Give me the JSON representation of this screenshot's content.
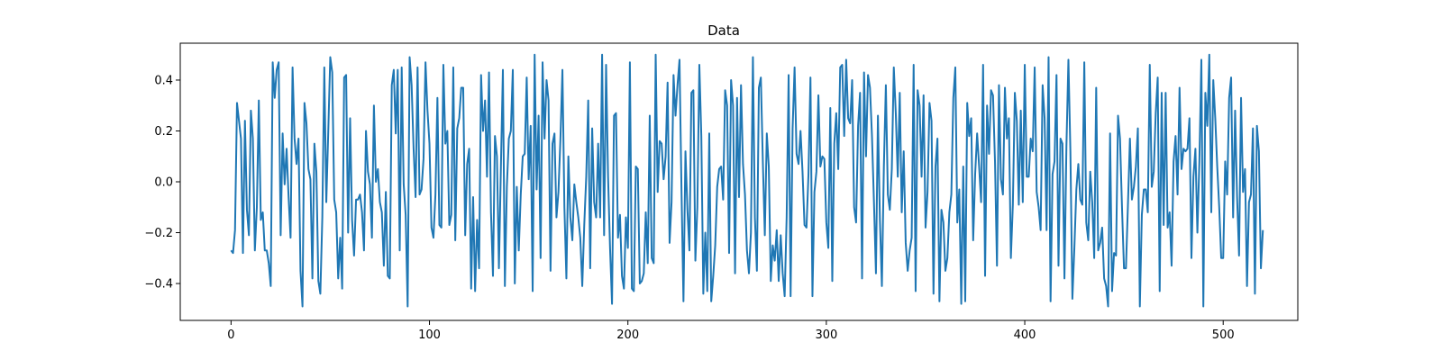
{
  "chart_data": {
    "type": "line",
    "title": "Data",
    "xlabel": "",
    "ylabel": "",
    "xlim": [
      -25.6,
      537.6
    ],
    "ylim": [
      -0.545,
      0.545
    ],
    "x_ticks": [
      0,
      100,
      200,
      300,
      400,
      500
    ],
    "y_ticks": [
      -0.4,
      -0.2,
      0.0,
      0.2,
      0.4
    ],
    "x_tick_labels": [
      "0",
      "100",
      "200",
      "300",
      "400",
      "500"
    ],
    "y_tick_labels": [
      "−0.4",
      "−0.2",
      "0.0",
      "0.2",
      "0.4"
    ],
    "grid": false,
    "line_color": "#1f77b4",
    "series": [
      {
        "x_start": 0,
        "x_step": 1,
        "values": [
          -0.27,
          -0.28,
          -0.19,
          0.31,
          0.24,
          0.17,
          -0.28,
          0.24,
          -0.11,
          -0.21,
          0.28,
          0.17,
          -0.27,
          -0.1,
          0.32,
          -0.15,
          -0.12,
          -0.27,
          -0.27,
          -0.32,
          -0.41,
          0.47,
          0.33,
          0.44,
          0.47,
          -0.21,
          0.19,
          -0.01,
          0.13,
          -0.06,
          -0.22,
          0.45,
          0.17,
          0.07,
          0.17,
          -0.35,
          -0.49,
          0.31,
          0.23,
          0.05,
          0.01,
          -0.38,
          0.15,
          0.04,
          -0.39,
          -0.44,
          -0.14,
          0.45,
          -0.08,
          0.2,
          0.49,
          0.43,
          -0.07,
          -0.12,
          -0.38,
          -0.22,
          -0.42,
          0.41,
          0.42,
          -0.2,
          0.25,
          -0.15,
          -0.29,
          -0.07,
          -0.07,
          -0.05,
          -0.12,
          -0.27,
          0.2,
          0.04,
          -0.01,
          -0.22,
          0.3,
          0.0,
          0.05,
          -0.08,
          -0.12,
          -0.33,
          -0.04,
          -0.37,
          -0.38,
          0.38,
          0.44,
          0.19,
          0.44,
          -0.27,
          0.45,
          -0.01,
          -0.13,
          -0.49,
          0.49,
          0.38,
          0.13,
          -0.06,
          0.45,
          -0.05,
          -0.03,
          0.09,
          0.47,
          0.28,
          0.15,
          -0.18,
          -0.22,
          -0.05,
          0.33,
          -0.17,
          -0.18,
          0.46,
          0.15,
          0.2,
          -0.17,
          -0.13,
          0.45,
          -0.23,
          0.21,
          0.25,
          0.37,
          0.37,
          -0.21,
          0.07,
          0.13,
          -0.42,
          -0.06,
          -0.43,
          -0.15,
          -0.34,
          0.42,
          0.2,
          0.32,
          0.02,
          0.43,
          -0.12,
          -0.37,
          0.18,
          0.1,
          -0.34,
          0.06,
          0.44,
          -0.41,
          -0.02,
          0.17,
          0.2,
          0.44,
          -0.4,
          -0.02,
          -0.27,
          -0.05,
          0.1,
          0.11,
          0.41,
          0.01,
          0.22,
          -0.43,
          0.5,
          -0.03,
          0.26,
          -0.3,
          0.47,
          0.17,
          0.4,
          0.32,
          -0.35,
          0.15,
          0.19,
          -0.14,
          -0.04,
          0.17,
          0.44,
          -0.1,
          -0.38,
          0.1,
          -0.14,
          -0.23,
          -0.01,
          -0.08,
          -0.14,
          -0.22,
          -0.41,
          -0.17,
          0.02,
          0.32,
          -0.34,
          0.21,
          -0.08,
          -0.14,
          0.15,
          -0.14,
          0.5,
          -0.21,
          0.46,
          0.02,
          -0.26,
          -0.48,
          0.26,
          0.27,
          -0.22,
          -0.13,
          -0.37,
          -0.42,
          -0.14,
          -0.26,
          0.47,
          -0.42,
          -0.43,
          0.06,
          0.05,
          -0.4,
          -0.39,
          -0.36,
          -0.12,
          -0.32,
          0.26,
          -0.3,
          -0.32,
          0.5,
          -0.04,
          0.16,
          0.15,
          0.01,
          0.1,
          0.39,
          -0.24,
          -0.08,
          0.42,
          0.26,
          0.38,
          0.48,
          -0.03,
          -0.47,
          0.12,
          -0.11,
          -0.27,
          0.35,
          0.36,
          -0.31,
          -0.1,
          0.46,
          0.18,
          -0.44,
          -0.2,
          -0.43,
          0.19,
          -0.47,
          -0.37,
          -0.25,
          -0.02,
          0.05,
          0.06,
          -0.07,
          0.36,
          0.3,
          -0.28,
          0.4,
          0.3,
          -0.36,
          0.33,
          -0.06,
          0.38,
          0.07,
          -0.05,
          -0.27,
          -0.36,
          -0.2,
          0.49,
          -0.14,
          -0.35,
          0.37,
          0.41,
          0.08,
          -0.21,
          0.19,
          0.06,
          -0.39,
          -0.25,
          -0.31,
          -0.19,
          -0.39,
          -0.21,
          -0.36,
          -0.45,
          -0.14,
          0.42,
          -0.45,
          0.21,
          0.45,
          0.11,
          0.07,
          0.2,
          0.04,
          -0.17,
          -0.18,
          0.03,
          0.41,
          -0.45,
          -0.04,
          0.04,
          0.34,
          0.06,
          0.1,
          0.09,
          -0.16,
          -0.26,
          0.29,
          -0.39,
          0.15,
          0.27,
          0.05,
          0.45,
          0.46,
          0.18,
          0.48,
          0.25,
          0.23,
          0.4,
          -0.1,
          -0.16,
          0.22,
          0.35,
          -0.38,
          0.43,
          0.1,
          0.42,
          0.37,
          0.18,
          -0.08,
          -0.36,
          0.26,
          -0.15,
          -0.41,
          0.06,
          0.38,
          -0.05,
          -0.11,
          0.05,
          0.45,
          0.27,
          0.02,
          0.35,
          -0.12,
          0.12,
          -0.24,
          -0.35,
          -0.27,
          -0.22,
          0.46,
          -0.43,
          0.36,
          0.3,
          0.02,
          0.34,
          -0.18,
          -0.04,
          0.31,
          0.24,
          -0.44,
          0.06,
          0.17,
          -0.47,
          -0.11,
          -0.16,
          -0.35,
          -0.3,
          -0.12,
          -0.05,
          0.33,
          0.45,
          -0.16,
          -0.03,
          -0.48,
          0.06,
          -0.47,
          0.31,
          0.18,
          0.25,
          -0.23,
          0.03,
          0.19,
          0.06,
          -0.08,
          0.46,
          -0.37,
          0.3,
          0.11,
          0.36,
          0.34,
          0.08,
          -0.33,
          0.38,
          0.01,
          -0.05,
          0.37,
          0.17,
          0.25,
          -0.3,
          -0.09,
          0.35,
          0.24,
          -0.09,
          0.28,
          -0.08,
          0.46,
          0.02,
          0.02,
          0.17,
          0.12,
          0.45,
          -0.04,
          -0.1,
          -0.19,
          0.38,
          0.25,
          -0.19,
          0.49,
          -0.47,
          0.03,
          0.08,
          0.42,
          -0.33,
          0.17,
          0.15,
          -0.38,
          0.14,
          0.48,
          0.12,
          -0.46,
          -0.26,
          -0.03,
          0.07,
          -0.07,
          -0.09,
          0.47,
          -0.16,
          -0.23,
          0.04,
          -0.08,
          -0.3,
          0.37,
          -0.27,
          -0.24,
          -0.18,
          -0.38,
          -0.41,
          -0.49,
          0.19,
          -0.43,
          -0.28,
          -0.29,
          0.26,
          0.17,
          -0.1,
          -0.34,
          -0.34,
          -0.09,
          0.17,
          -0.07,
          -0.02,
          0.06,
          0.21,
          -0.49,
          -0.13,
          -0.03,
          -0.03,
          -0.12,
          0.46,
          -0.02,
          0.04,
          0.27,
          0.41,
          -0.43,
          0.35,
          -0.17,
          0.35,
          -0.18,
          -0.12,
          -0.33,
          0.08,
          0.18,
          -0.05,
          0.37,
          0.05,
          0.13,
          0.12,
          0.13,
          0.25,
          -0.3,
          0.02,
          0.13,
          -0.2,
          0.08,
          0.48,
          -0.49,
          0.35,
          0.22,
          0.5,
          -0.12,
          0.4,
          0.25,
          0.06,
          -0.1,
          -0.3,
          -0.3,
          0.08,
          -0.05,
          0.33,
          0.41,
          -0.14,
          0.28,
          -0.06,
          -0.29,
          0.33,
          -0.04,
          0.05,
          -0.41,
          -0.08,
          -0.05,
          0.21,
          -0.44,
          0.22,
          0.12,
          -0.34,
          -0.19
        ]
      }
    ]
  }
}
